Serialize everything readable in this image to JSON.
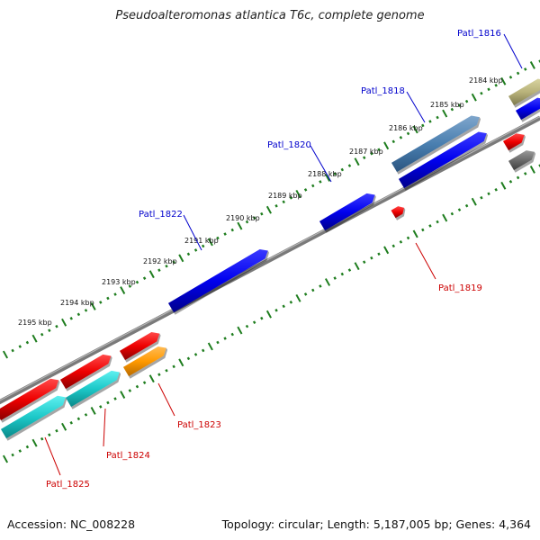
{
  "title": "Pseudoalteromonas atlantica T6c, complete genome",
  "accession": "Accession: NC_008228",
  "topology": "Topology: circular; Length: 5,187,005 bp; Genes: 4,364",
  "colors": {
    "backbone": "#6f6f6f",
    "ticks": "#1e7d1e",
    "plus_labels": "#0000cc",
    "minus_labels": "#cc0000"
  },
  "kbp_labels": [
    "2184 kbp",
    "2185 kbp",
    "2186 kbp",
    "2187 kbp",
    "2188 kbp",
    "2189 kbp",
    "2190 kbp",
    "2191 kbp",
    "2192 kbp",
    "2193 kbp",
    "2194 kbp",
    "2195 kbp"
  ],
  "gene_labels": {
    "plus": [
      "Patl_1816",
      "Patl_1818",
      "Patl_1820",
      "Patl_1822"
    ],
    "minus": [
      "Patl_1819",
      "Patl_1823",
      "Patl_1824",
      "Patl_1825"
    ]
  },
  "legend_note": ""
}
